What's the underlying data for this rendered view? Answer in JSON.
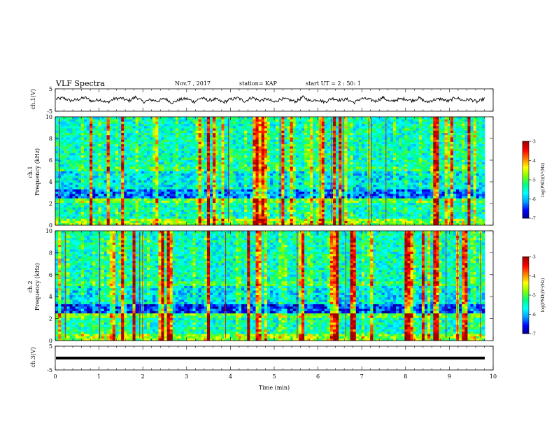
{
  "header": {
    "title": "VLF Spectra",
    "date": "Nov.7 , 2017",
    "station": "station= KAP",
    "start": "start  UT =  2 : 50: 1"
  },
  "colorbar": {
    "label": "log(PSD)(V²/Hz)",
    "ticks": [
      "-3",
      "-4",
      "-5",
      "-6",
      "-7"
    ]
  },
  "chart_data": [
    {
      "type": "line",
      "panel": "ch1-waveform",
      "ylabel": "ch.1(V)",
      "ylim": [
        -5,
        5
      ],
      "yticks": [
        "5",
        "-5"
      ],
      "xlim": [
        0,
        10
      ],
      "series": [
        {
          "values": [
            0.4,
            0.9,
            -0.3,
            0.2,
            1.1,
            -0.6,
            0.3,
            -1.2,
            0.5,
            0.8,
            -0.4,
            1.4,
            -0.9,
            0.1,
            -0.5,
            0.7,
            -1.3,
            0.2,
            0.6,
            -0.8,
            1.0,
            -0.2,
            0.4,
            -1.1,
            0.3,
            0.9,
            -0.6,
            1.2,
            -0.3,
            0.5,
            -1.0,
            0.6,
            0.1,
            -0.7,
            1.3,
            -0.4,
            0.2,
            -0.9,
            0.8,
            -0.1,
            0.4,
            -1.2,
            0.7,
            0.3,
            -0.5,
            1.1,
            -0.8,
            0.2,
            0.6,
            -0.3,
            0.9,
            -1.0,
            0.1,
            0.5,
            -0.6,
            1.2,
            -0.2,
            0.3,
            -0.9,
            0.7
          ]
        }
      ]
    },
    {
      "type": "heatmap",
      "panel": "ch1-spectrogram",
      "ylabel": "ch.1\nFrequency (kHz)",
      "ylim": [
        0,
        10
      ],
      "yticks": [
        "0",
        "2",
        "4",
        "6",
        "8",
        "10"
      ],
      "xlim": [
        0,
        10
      ],
      "zlim": [
        -7,
        -3
      ]
    },
    {
      "type": "heatmap",
      "panel": "ch2-spectrogram",
      "ylabel": "ch.2\nFrequency (kHz)",
      "ylim": [
        0,
        10
      ],
      "yticks": [
        "0",
        "2",
        "4",
        "6",
        "8",
        "10"
      ],
      "xlim": [
        0,
        10
      ],
      "zlim": [
        -7,
        -3
      ]
    },
    {
      "type": "line",
      "panel": "ch3-waveform",
      "ylabel": "ch.3(V)",
      "ylim": [
        -5,
        5
      ],
      "yticks": [
        "5",
        "-5"
      ],
      "xlim": [
        0,
        10
      ],
      "series": [
        {
          "values": [
            0,
            0
          ]
        }
      ]
    }
  ],
  "xaxis": {
    "label": "Time (min)",
    "ticks": [
      "0",
      "1",
      "2",
      "3",
      "4",
      "5",
      "6",
      "7",
      "8",
      "9",
      "10"
    ]
  },
  "colors": {
    "colormap": [
      "#000080",
      "#0000ff",
      "#00a0ff",
      "#00ffff",
      "#00ff80",
      "#80ff00",
      "#ffff00",
      "#ff8000",
      "#ff0000",
      "#a00000"
    ]
  }
}
